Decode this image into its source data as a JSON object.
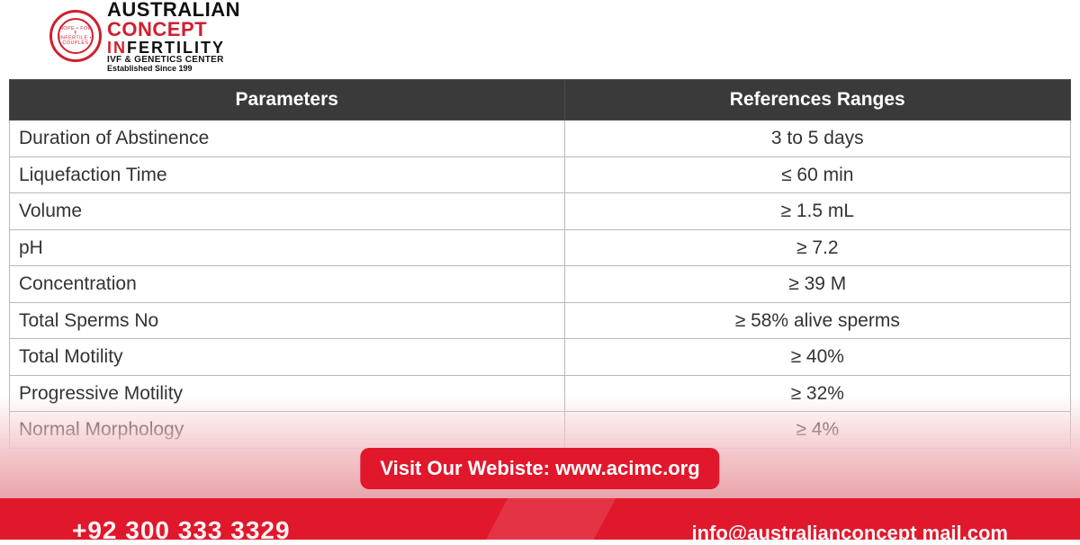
{
  "logo": {
    "line1": "AUSTRALIAN",
    "line2": "CONCEPT",
    "line3_red": "IN",
    "line3_black": "FERTILITY",
    "line4": "IVF & GENETICS CENTER",
    "line5": "Established Since 199",
    "seal_text_top": "HOPE • FOR",
    "seal_text_bottom": "INFERTILE • COUPLES"
  },
  "table": {
    "columns": [
      "Parameters",
      "References Ranges"
    ],
    "rows": [
      [
        "Duration of Abstinence",
        "3 to 5 days"
      ],
      [
        "Liquefaction Time",
        "≤ 60 min"
      ],
      [
        "Volume",
        "≥ 1.5 mL"
      ],
      [
        "pH",
        "≥ 7.2"
      ],
      [
        "Concentration",
        "≥ 39 M"
      ],
      [
        "Total Sperms No",
        "≥ 58% alive sperms"
      ],
      [
        "Total Motility",
        "≥ 40%"
      ],
      [
        "Progressive Motility",
        "≥ 32%"
      ],
      [
        "Normal Morphology",
        "≥ 4%"
      ]
    ],
    "header_bg": "#3a3a3a",
    "header_color": "#ffffff",
    "border_color": "#b9b9b9",
    "cell_color": "#333333",
    "fontsize": 21
  },
  "cta": {
    "label": "Visit Our Webiste: www.acimc.org",
    "bg": "#e1172b",
    "color": "#ffffff"
  },
  "footer": {
    "phone_partial": "+92 300 333 3329",
    "email_partial": "info@australianconcept mail.com"
  },
  "colors": {
    "brand_red": "#e1172b",
    "logo_red": "#d01f2f",
    "fade_start": "#ffffff",
    "fade_end": "#e7a0a7"
  }
}
